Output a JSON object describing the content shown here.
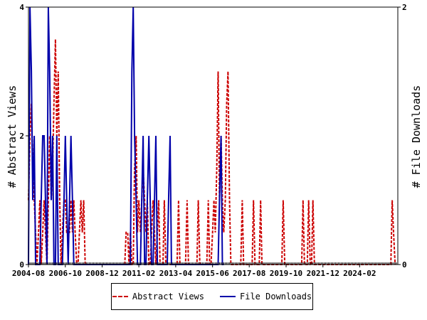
{
  "chart_data": {
    "type": "line",
    "title": "",
    "ylabel_left": "# Abstract Views",
    "ylabel_right": "# File Downloads",
    "ylim_left": [
      0,
      4
    ],
    "ylim_right": [
      0,
      2
    ],
    "left_ticks": [
      "0",
      "2",
      "4"
    ],
    "right_ticks": [
      "0",
      "2"
    ],
    "x_range": [
      2004.58,
      2026.33
    ],
    "x_tick_labels": [
      "2004-08",
      "2006-10",
      "2008-12",
      "2011-02",
      "2013-04",
      "2015-06",
      "2017-08",
      "2019-10",
      "2021-12",
      "2024-02"
    ],
    "x_tick_values": [
      2004.58,
      2006.75,
      2008.92,
      2011.08,
      2013.25,
      2015.42,
      2017.58,
      2019.75,
      2021.92,
      2024.08
    ],
    "legend_position": "bottom",
    "series": [
      {
        "name": "Abstract Views",
        "axis": "left",
        "color": "#cc0000",
        "style": "dashed",
        "points": [
          [
            2004.58,
            1
          ],
          [
            2004.67,
            2
          ],
          [
            2004.75,
            2.5
          ],
          [
            2004.83,
            1.5
          ],
          [
            2004.92,
            1
          ],
          [
            2005.0,
            0.5
          ],
          [
            2005.08,
            0
          ],
          [
            2005.17,
            0.5
          ],
          [
            2005.25,
            1
          ],
          [
            2005.33,
            0
          ],
          [
            2005.42,
            0.5
          ],
          [
            2005.5,
            1
          ],
          [
            2005.58,
            0.5
          ],
          [
            2005.67,
            0
          ],
          [
            2005.75,
            1
          ],
          [
            2005.83,
            2
          ],
          [
            2005.92,
            1
          ],
          [
            2006.0,
            1.5
          ],
          [
            2006.08,
            2.5
          ],
          [
            2006.17,
            3.5
          ],
          [
            2006.25,
            2
          ],
          [
            2006.33,
            3
          ],
          [
            2006.42,
            1
          ],
          [
            2006.5,
            0
          ],
          [
            2006.58,
            0.5
          ],
          [
            2006.67,
            1
          ],
          [
            2006.75,
            1
          ],
          [
            2006.83,
            0.5
          ],
          [
            2006.92,
            0.5
          ],
          [
            2007.0,
            0.5
          ],
          [
            2007.08,
            1
          ],
          [
            2007.17,
            0.5
          ],
          [
            2007.25,
            1
          ],
          [
            2007.33,
            0.5
          ],
          [
            2007.42,
            0
          ],
          [
            2007.5,
            0
          ],
          [
            2007.58,
            0.5
          ],
          [
            2007.67,
            1
          ],
          [
            2007.75,
            0.5
          ],
          [
            2007.83,
            1
          ],
          [
            2007.92,
            0
          ],
          [
            2008.0,
            0
          ],
          [
            2010.25,
            0
          ],
          [
            2010.33,
            0.5
          ],
          [
            2010.42,
            0.5
          ],
          [
            2010.5,
            0
          ],
          [
            2010.58,
            0.5
          ],
          [
            2010.67,
            0
          ],
          [
            2010.75,
            0
          ],
          [
            2010.83,
            1.5
          ],
          [
            2010.92,
            2
          ],
          [
            2011.0,
            0.5
          ],
          [
            2011.08,
            1
          ],
          [
            2011.17,
            0.5
          ],
          [
            2011.25,
            1
          ],
          [
            2011.33,
            1.5
          ],
          [
            2011.42,
            1
          ],
          [
            2011.5,
            0.5
          ],
          [
            2011.58,
            1
          ],
          [
            2011.67,
            0
          ],
          [
            2011.75,
            0
          ],
          [
            2011.83,
            0.5
          ],
          [
            2011.92,
            1
          ],
          [
            2012.0,
            0.5
          ],
          [
            2012.08,
            0
          ],
          [
            2012.17,
            0.5
          ],
          [
            2012.25,
            1
          ],
          [
            2012.33,
            0
          ],
          [
            2012.42,
            0
          ],
          [
            2012.5,
            0
          ],
          [
            2012.58,
            1
          ],
          [
            2012.67,
            0
          ],
          [
            2012.75,
            0
          ],
          [
            2012.83,
            0
          ],
          [
            2013.33,
            0
          ],
          [
            2013.42,
            1
          ],
          [
            2013.5,
            0
          ],
          [
            2013.83,
            0
          ],
          [
            2013.92,
            1
          ],
          [
            2014.0,
            0
          ],
          [
            2014.5,
            0
          ],
          [
            2014.58,
            1
          ],
          [
            2014.67,
            0
          ],
          [
            2015.08,
            0
          ],
          [
            2015.17,
            1
          ],
          [
            2015.25,
            0
          ],
          [
            2015.33,
            0
          ],
          [
            2015.42,
            0.5
          ],
          [
            2015.5,
            1
          ],
          [
            2015.58,
            0.5
          ],
          [
            2015.67,
            1.5
          ],
          [
            2015.75,
            3
          ],
          [
            2015.83,
            1
          ],
          [
            2015.92,
            2
          ],
          [
            2016.0,
            1
          ],
          [
            2016.08,
            0.5
          ],
          [
            2016.17,
            1
          ],
          [
            2016.25,
            2.5
          ],
          [
            2016.33,
            3
          ],
          [
            2016.42,
            1
          ],
          [
            2016.5,
            0
          ],
          [
            2016.58,
            0
          ],
          [
            2017.08,
            0
          ],
          [
            2017.17,
            1
          ],
          [
            2017.25,
            0
          ],
          [
            2017.75,
            0
          ],
          [
            2017.83,
            1
          ],
          [
            2017.92,
            0
          ],
          [
            2018.17,
            0
          ],
          [
            2018.25,
            1
          ],
          [
            2018.33,
            0
          ],
          [
            2019.5,
            0
          ],
          [
            2019.58,
            1
          ],
          [
            2019.67,
            0
          ],
          [
            2020.67,
            0
          ],
          [
            2020.75,
            1
          ],
          [
            2020.83,
            0
          ],
          [
            2021.0,
            0
          ],
          [
            2021.08,
            1
          ],
          [
            2021.17,
            0
          ],
          [
            2021.25,
            0
          ],
          [
            2021.33,
            1
          ],
          [
            2021.42,
            0
          ],
          [
            2025.92,
            0
          ],
          [
            2026.0,
            1
          ],
          [
            2026.08,
            0.5
          ],
          [
            2026.17,
            0
          ]
        ]
      },
      {
        "name": "File Downloads",
        "axis": "right",
        "color": "#0000aa",
        "style": "solid",
        "points": [
          [
            2004.58,
            0
          ],
          [
            2004.67,
            2
          ],
          [
            2004.75,
            1.5
          ],
          [
            2004.83,
            0.5
          ],
          [
            2004.92,
            1
          ],
          [
            2005.0,
            0
          ],
          [
            2005.08,
            0
          ],
          [
            2005.25,
            0
          ],
          [
            2005.33,
            0.5
          ],
          [
            2005.42,
            1
          ],
          [
            2005.5,
            1
          ],
          [
            2005.58,
            0.5
          ],
          [
            2005.67,
            0
          ],
          [
            2005.75,
            2
          ],
          [
            2005.83,
            1.5
          ],
          [
            2005.92,
            0.5
          ],
          [
            2006.0,
            1
          ],
          [
            2006.08,
            0
          ],
          [
            2006.17,
            0
          ],
          [
            2006.25,
            1
          ],
          [
            2006.33,
            0
          ],
          [
            2006.5,
            0
          ],
          [
            2006.58,
            0
          ],
          [
            2006.67,
            0.5
          ],
          [
            2006.75,
            1
          ],
          [
            2006.83,
            0.5
          ],
          [
            2006.92,
            0
          ],
          [
            2007.0,
            0.5
          ],
          [
            2007.08,
            1
          ],
          [
            2007.17,
            0.5
          ],
          [
            2007.25,
            0
          ],
          [
            2007.33,
            0
          ],
          [
            2007.5,
            0
          ],
          [
            2010.58,
            0
          ],
          [
            2010.67,
            1.5
          ],
          [
            2010.75,
            2
          ],
          [
            2010.83,
            1
          ],
          [
            2010.92,
            0.5
          ],
          [
            2011.0,
            0
          ],
          [
            2011.08,
            0
          ],
          [
            2011.17,
            0
          ],
          [
            2011.25,
            0.5
          ],
          [
            2011.33,
            1
          ],
          [
            2011.42,
            0
          ],
          [
            2011.5,
            0
          ],
          [
            2011.58,
            0.5
          ],
          [
            2011.67,
            1
          ],
          [
            2011.75,
            0.5
          ],
          [
            2011.83,
            0
          ],
          [
            2011.92,
            0
          ],
          [
            2012.0,
            0.5
          ],
          [
            2012.08,
            1
          ],
          [
            2012.17,
            0
          ],
          [
            2012.25,
            0
          ],
          [
            2012.75,
            0
          ],
          [
            2012.83,
            0.5
          ],
          [
            2012.92,
            1
          ],
          [
            2013.0,
            0
          ],
          [
            2013.08,
            0
          ],
          [
            2015.75,
            0
          ],
          [
            2015.83,
            0.5
          ],
          [
            2015.92,
            1
          ],
          [
            2016.0,
            0
          ],
          [
            2016.08,
            0
          ]
        ]
      }
    ]
  }
}
